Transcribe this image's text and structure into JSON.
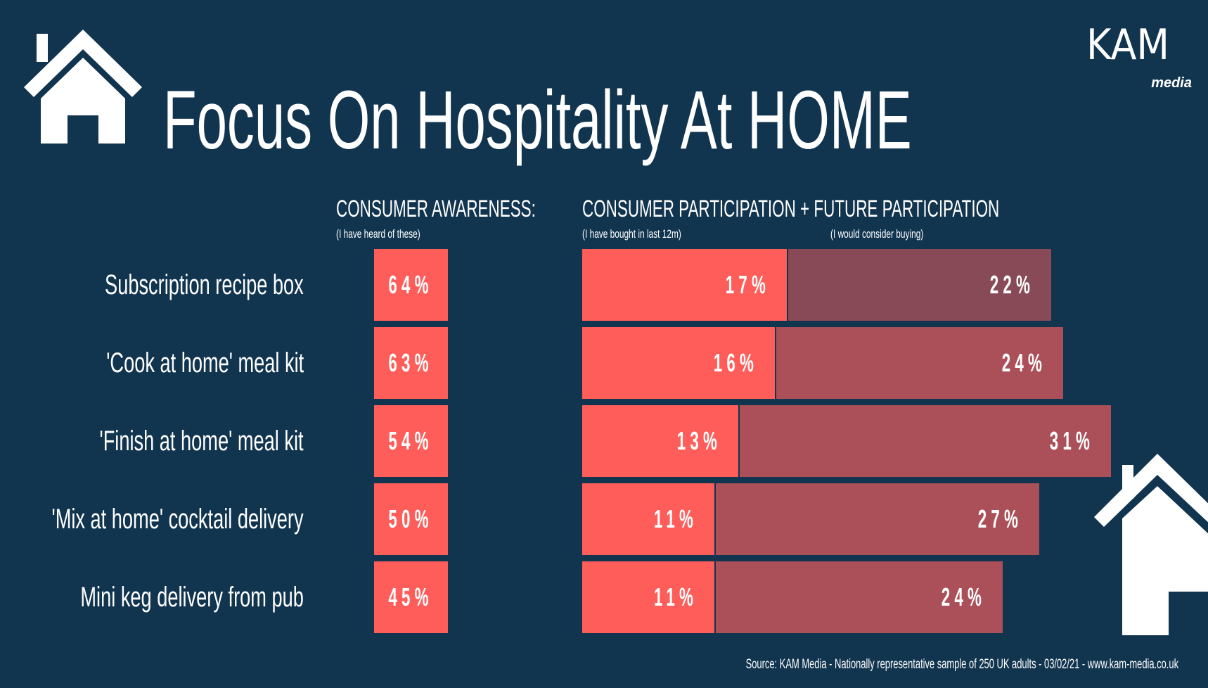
{
  "title": "Focus On Hospitality At HOME",
  "logo": {
    "main": "KAM",
    "sub": "media"
  },
  "icons": [
    "house-icon-top-left",
    "house-icon-bottom-right"
  ],
  "colors": {
    "background": "#11344f",
    "awareness": "#fe5d5a",
    "participation": "#fe5d5a",
    "future": "#ab5058",
    "future_first_row": "#874a56"
  },
  "headers": {
    "awareness": "CONSUMER AWARENESS:",
    "awareness_sub": "(I have heard of these)",
    "participation": "CONSUMER PARTICIPATION + FUTURE PARTICIPATION",
    "participation_sub": "(I have bought in last 12m)",
    "future_sub": "(I would consider buying)"
  },
  "chart_data": {
    "type": "bar",
    "categories": [
      "Subscription recipe box",
      "'Cook at home' meal kit",
      "'Finish at home' meal kit",
      "'Mix at home' cocktail delivery",
      "Mini keg delivery from pub"
    ],
    "series": [
      {
        "name": "CONSUMER AWARENESS:",
        "values": [
          64,
          63,
          54,
          50,
          45
        ],
        "labels": [
          "64%",
          "63%",
          "54%",
          "50%",
          "45%"
        ]
      },
      {
        "name": "CONSUMER PARTICIPATION",
        "values": [
          17,
          16,
          13,
          11,
          11
        ],
        "labels": [
          "17%",
          "16%",
          "13%",
          "11%",
          "11%"
        ]
      },
      {
        "name": "FUTURE PARTICIPATION",
        "values": [
          22,
          24,
          31,
          27,
          24
        ],
        "labels": [
          "22%",
          "24%",
          "31%",
          "27%",
          "24%"
        ]
      }
    ],
    "stacked": "participation + future",
    "unit": "%"
  },
  "footer": "Source: KAM Media - Nationally representative sample of 250 UK adults - 03/02/21 - www.kam-media.co.uk"
}
